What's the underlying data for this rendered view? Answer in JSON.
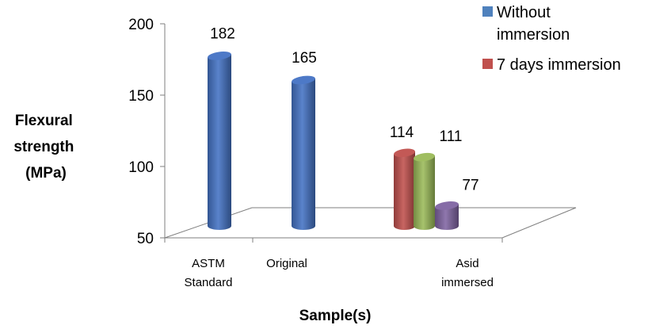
{
  "chart_data": {
    "type": "bar",
    "ylabel": [
      "Flexural",
      "strength",
      "(MPa)"
    ],
    "xlabel": "Sample(s)",
    "ylim": [
      50,
      200
    ],
    "yticks": [
      "50",
      "100",
      "150",
      "200"
    ],
    "categories": [
      {
        "lines": [
          "ASTM",
          "Standard"
        ]
      },
      {
        "lines": [
          "Original"
        ]
      },
      {
        "lines": [
          "Asid",
          "immersed"
        ]
      }
    ],
    "bars": [
      {
        "category": 0,
        "value": 182,
        "label": "182",
        "color": "#4472c4"
      },
      {
        "category": 1,
        "value": 165,
        "label": "165",
        "color": "#4472c4"
      },
      {
        "category": 2,
        "value": 114,
        "label": "114",
        "color": "#c0504d"
      },
      {
        "category": 2,
        "value": 111,
        "label": "111",
        "color": "#9bbb59"
      },
      {
        "category": 2,
        "value": 77,
        "label": "77",
        "color": "#8064a2"
      }
    ],
    "legend": [
      {
        "lines": [
          "Without",
          "immersion"
        ],
        "color": "#4f81bd"
      },
      {
        "lines": [
          "7 days immersion"
        ],
        "color": "#c0504d"
      }
    ],
    "legend_position": "top-right",
    "grid": false
  }
}
